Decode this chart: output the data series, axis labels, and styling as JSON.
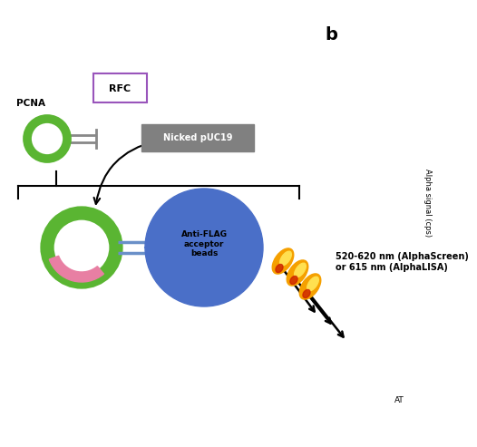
{
  "background_color": "#ffffff",
  "label_b": "b",
  "label_b_fontsize": 14,
  "antiflag_color": "#4a6fc8",
  "antiflag_text": "Anti-FLAG\nacceptor\nbeads",
  "antiflag_text_color": "#000000",
  "antiflag_fontsize": 6.5,
  "pcna_ring_color_green": "#5ab532",
  "pcna_ring_color_pink": "#e87fa3",
  "emission_text": "520-620 nm (AlphaScreen)\nor 615 nm (AlphaLISA)",
  "emission_fontsize": 7,
  "nicked_label": "Nicked pUC19",
  "rfc_label": "RFC",
  "pcna_label": "PCNA",
  "ylabel_text": "Alpha signal (cps)",
  "at_label": "AT",
  "tag_color": "#6a90c8",
  "connector_color": "#6a90c8"
}
